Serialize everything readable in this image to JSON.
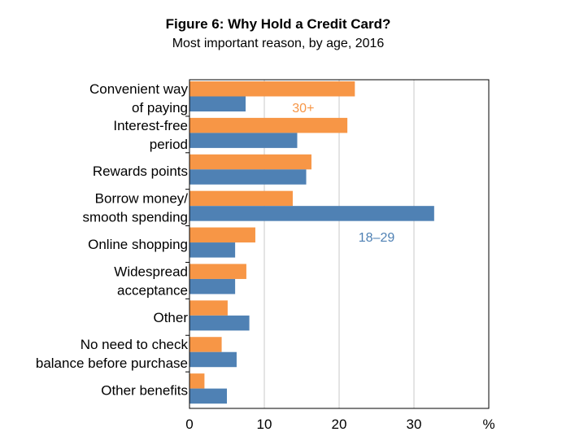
{
  "chart_data": {
    "type": "bar",
    "orientation": "horizontal",
    "title": "Figure 6: Why Hold a Credit Card?",
    "subtitle": "Most important reason, by age, 2016",
    "categories": [
      [
        "Convenient way",
        "of paying"
      ],
      [
        "Interest-free",
        "period"
      ],
      [
        "Rewards points"
      ],
      [
        "Borrow money/",
        "smooth spending"
      ],
      [
        "Online shopping"
      ],
      [
        "Widespread",
        "acceptance"
      ],
      [
        "Other"
      ],
      [
        "No need to check",
        "balance before purchase"
      ],
      [
        "Other benefits"
      ]
    ],
    "series": [
      {
        "name": "30+",
        "color": "#F79646",
        "values": [
          22.1,
          21.1,
          16.3,
          13.8,
          8.8,
          7.6,
          5.1,
          4.3,
          2.0
        ]
      },
      {
        "name": "18–29",
        "color": "#4F81B4",
        "values": [
          7.5,
          14.4,
          15.6,
          32.7,
          6.1,
          6.1,
          8.0,
          6.3,
          5.0
        ]
      }
    ],
    "xlim": [
      0,
      40
    ],
    "xticks": [
      0,
      10,
      20,
      30
    ],
    "xunit": "%",
    "grid": true
  }
}
